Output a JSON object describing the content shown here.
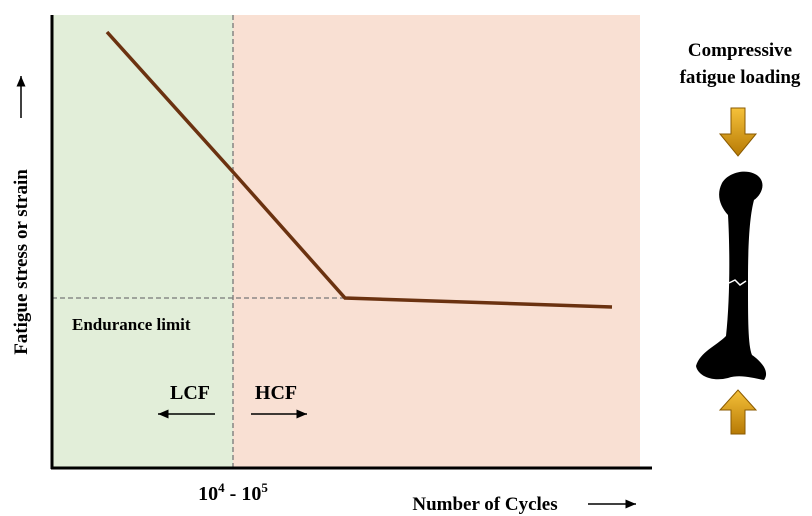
{
  "y_axis_label": "Fatigue stress or strain",
  "x_axis_label": "Number of Cycles",
  "transition": {
    "parts": [
      "10",
      "4",
      " - ",
      "10",
      "5"
    ]
  },
  "endurance_limit": "Endurance limit",
  "regions": {
    "left": "LCF",
    "right": "HCF"
  },
  "loading": {
    "lines": [
      "Compressive",
      "fatigue loading"
    ]
  }
}
